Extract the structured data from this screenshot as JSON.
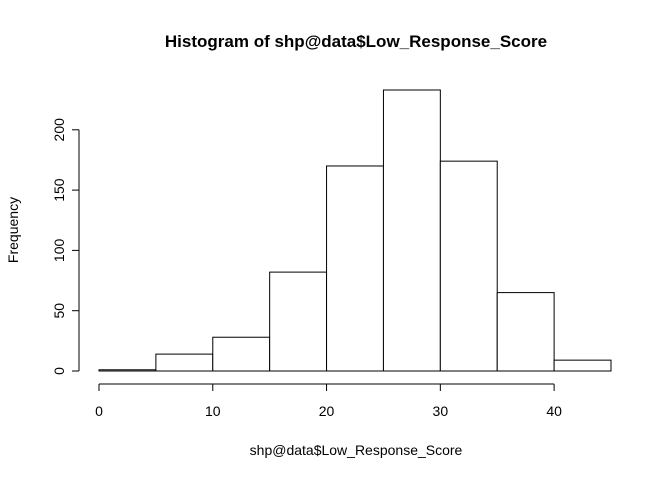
{
  "chart_data": {
    "type": "bar",
    "title": "Histogram of shp@data$Low_Response_Score",
    "xlabel": "shp@data$Low_Response_Score",
    "ylabel": "Frequency",
    "bins": [
      {
        "start": 0,
        "end": 5,
        "count": 1
      },
      {
        "start": 5,
        "end": 10,
        "count": 14
      },
      {
        "start": 10,
        "end": 15,
        "count": 28
      },
      {
        "start": 15,
        "end": 20,
        "count": 82
      },
      {
        "start": 20,
        "end": 25,
        "count": 170
      },
      {
        "start": 25,
        "end": 30,
        "count": 233
      },
      {
        "start": 30,
        "end": 35,
        "count": 174
      },
      {
        "start": 35,
        "end": 40,
        "count": 65
      },
      {
        "start": 40,
        "end": 45,
        "count": 9
      }
    ],
    "xlim": [
      0,
      45
    ],
    "ylim": [
      0,
      233
    ],
    "x_ticks": [
      "0",
      "10",
      "20",
      "30",
      "40"
    ],
    "y_ticks": [
      "0",
      "50",
      "100",
      "150",
      "200"
    ],
    "grid": false,
    "legend": "none",
    "colors": {
      "bar_fill": "#ffffff",
      "bar_stroke": "#000000"
    }
  }
}
